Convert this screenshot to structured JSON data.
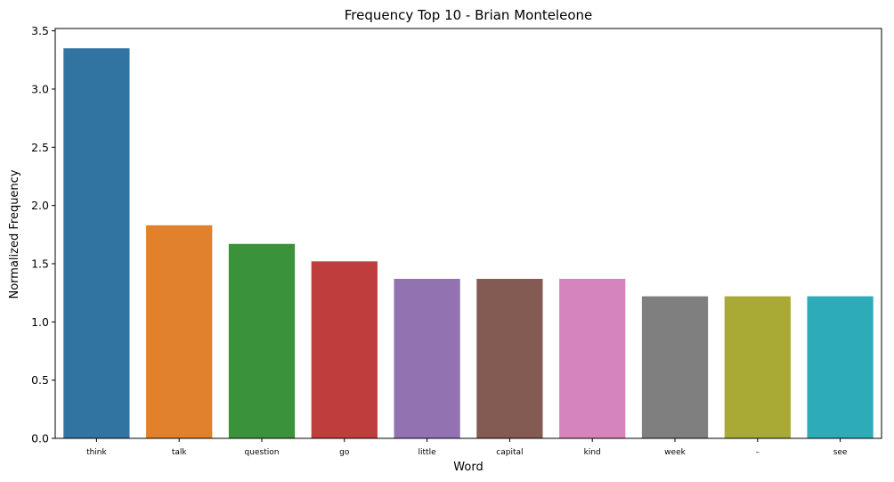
{
  "chart_data": {
    "type": "bar",
    "title": "Frequency Top 10 - Brian Monteleone",
    "xlabel": "Word",
    "ylabel": "Normalized Frequency",
    "categories": [
      "think",
      "talk",
      "question",
      "go",
      "little",
      "capital",
      "kind",
      "week",
      "–",
      "see"
    ],
    "values": [
      3.35,
      1.83,
      1.67,
      1.52,
      1.37,
      1.37,
      1.37,
      1.22,
      1.22,
      1.22
    ],
    "colors": [
      "#3274a1",
      "#e1812c",
      "#3a923a",
      "#c03d3e",
      "#9372b2",
      "#845b53",
      "#d684bd",
      "#7f7f7f",
      "#a9aa35",
      "#2eabb8"
    ],
    "yticks": [
      "0.0",
      "0.5",
      "1.0",
      "1.5",
      "2.0",
      "2.5",
      "3.0",
      "3.5"
    ],
    "ylim": [
      0,
      3.52
    ],
    "grid": false,
    "legend": "none"
  }
}
